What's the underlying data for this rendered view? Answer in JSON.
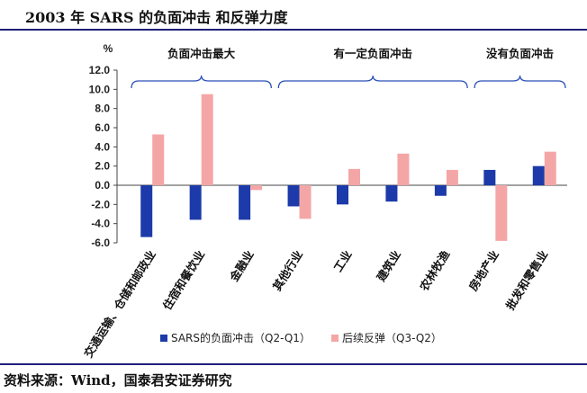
{
  "title": "2003 年 SARS 的负面冲击 和反弹力度",
  "source": "资料来源：Wind，国泰君安证券研究",
  "chart_data": {
    "type": "bar",
    "ylabel": "%",
    "ylim": [
      -6,
      12
    ],
    "yticks": [
      "12.0",
      "10.0",
      "8.0",
      "6.0",
      "4.0",
      "2.0",
      "0.0",
      "-2.0",
      "-4.0",
      "-6.0"
    ],
    "categories": [
      "交通运输、仓储和邮政业",
      "住宿和餐饮业",
      "金融业",
      "其他行业",
      "工业",
      "建筑业",
      "农林牧渔",
      "房地产业",
      "批发和零售业"
    ],
    "series": [
      {
        "name": "SARS的负面冲击（Q2-Q1）",
        "color": "#1c3aa9",
        "values": [
          -5.4,
          -3.6,
          -3.6,
          -2.2,
          -2.0,
          -1.7,
          -1.1,
          1.6,
          2.0
        ]
      },
      {
        "name": "后续反弹（Q3-Q2）",
        "color": "#f4a6a6",
        "values": [
          5.3,
          9.5,
          -0.5,
          -3.5,
          1.7,
          3.3,
          1.6,
          -5.8,
          3.5
        ]
      }
    ],
    "groups": [
      {
        "label": "负面冲击最大",
        "from": 0,
        "to": 2
      },
      {
        "label": "有一定负面冲击",
        "from": 3,
        "to": 6
      },
      {
        "label": "没有负面冲击",
        "from": 7,
        "to": 8
      }
    ],
    "legend_position": "bottom"
  }
}
